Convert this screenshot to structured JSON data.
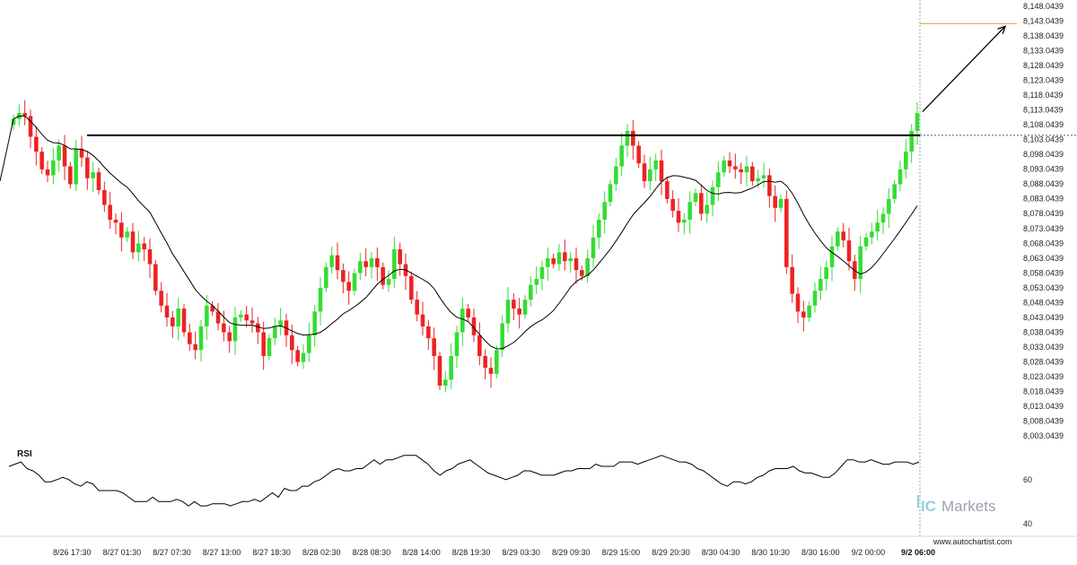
{
  "chart_data": {
    "type": "candlestick",
    "y_axis": {
      "ticks": [
        "8,148.0439",
        "8,143.0439",
        "8,138.0439",
        "8,133.0439",
        "8,128.0439",
        "8,123.0439",
        "8,118.0439",
        "8,113.0439",
        "8,108.0439",
        "8,103.0439",
        "8,098.0439",
        "8,093.0439",
        "8,088.0439",
        "8,083.0439",
        "8,078.0439",
        "8,073.0439",
        "8,068.0439",
        "8,063.0439",
        "8,058.0439",
        "8,053.0439",
        "8,048.0439",
        "8,043.0439",
        "8,038.0439",
        "8,033.0439",
        "8,028.0439",
        "8,023.0439",
        "8,018.0439",
        "8,013.0439",
        "8,008.0439",
        "8,003.0439"
      ],
      "ylim": [
        8003.0439,
        8148.0439
      ]
    },
    "x_axis": {
      "ticks": [
        "8/26 17:30",
        "8/27 01:30",
        "8/27 07:30",
        "8/27 13:00",
        "8/27 18:30",
        "8/28 02:30",
        "8/28 08:30",
        "8/28 14:00",
        "8/28 19:30",
        "8/29 03:30",
        "8/29 09:30",
        "8/29 15:00",
        "8/29 20:30",
        "8/30 04:30",
        "8/30 10:30",
        "8/30 16:00",
        "9/2 00:00"
      ],
      "current_label": "9/2 06:00"
    },
    "resistance_level": 8104.5,
    "target_level": 8142.2,
    "price_series": [
      8110,
      8112,
      8111,
      8104,
      8099,
      8093,
      8091,
      8096,
      8101,
      8094,
      8088,
      8100,
      8097,
      8090,
      8092,
      8086,
      8081,
      8076,
      8075,
      8070,
      8072,
      8065,
      8068,
      8066,
      8061,
      8052,
      8047,
      8043,
      8040,
      8046,
      8038,
      8034,
      8032,
      8040,
      8047,
      8045,
      8041,
      8038,
      8035,
      8043,
      8044,
      8042,
      8041,
      8038,
      8030,
      8036,
      8040,
      8042,
      8037,
      8032,
      8028,
      8031,
      8037,
      8045,
      8053,
      8060,
      8064,
      8059,
      8055,
      8052,
      8058,
      8062,
      8060,
      8063,
      8060,
      8054,
      8056,
      8066,
      8061,
      8057,
      8049,
      8044,
      8040,
      8036,
      8030,
      8020,
      8022,
      8030,
      8038,
      8046,
      8043,
      8037,
      8030,
      8026,
      8024,
      8032,
      8041,
      8049,
      8046,
      8044,
      8049,
      8054,
      8056,
      8060,
      8063,
      8061,
      8065,
      8062,
      8063,
      8059,
      8057,
      8063,
      8070,
      8076,
      8082,
      8088,
      8094,
      8101,
      8106,
      8101,
      8095,
      8089,
      8093,
      8096,
      8089,
      8083,
      8079,
      8075,
      8076,
      8082,
      8085,
      8078,
      8081,
      8087,
      8092,
      8096,
      8094,
      8093,
      8092,
      8094,
      8089,
      8090,
      8091,
      8084,
      8080,
      8083,
      8060,
      8051,
      8045,
      8043,
      8047,
      8052,
      8056,
      8060,
      8067,
      8072,
      8069,
      8062,
      8056,
      8067,
      8070,
      8072,
      8075,
      8078,
      8083,
      8088,
      8093,
      8099,
      8106,
      8112
    ],
    "rsi": {
      "title": "RSI",
      "ticks": [
        "60",
        "40"
      ],
      "ylim": [
        35,
        75
      ],
      "values": [
        66,
        67,
        68,
        65,
        64,
        62,
        59,
        59,
        60,
        61,
        60,
        58,
        57,
        59,
        58,
        55,
        55,
        55,
        55,
        54,
        52,
        50,
        50,
        50,
        52,
        50,
        50,
        50,
        51,
        50,
        48,
        50,
        48,
        48,
        49,
        49,
        49,
        48,
        49,
        50,
        50,
        51,
        50,
        52,
        54,
        52,
        56,
        55,
        55,
        57,
        57,
        59,
        60,
        62,
        64,
        65,
        64,
        64,
        65,
        65,
        67,
        69,
        67,
        69,
        69,
        70,
        71,
        71,
        71,
        69,
        67,
        64,
        62,
        64,
        65,
        67,
        68,
        69,
        67,
        65,
        63,
        62,
        61,
        60,
        61,
        62,
        64,
        64,
        63,
        62,
        62,
        62,
        63,
        64,
        64,
        65,
        65,
        65,
        67,
        66,
        66,
        66,
        68,
        68,
        68,
        67,
        68,
        69,
        70,
        71,
        70,
        69,
        68,
        68,
        67,
        65,
        64,
        62,
        60,
        58,
        57,
        59,
        59,
        58,
        59,
        61,
        62,
        64,
        65,
        65,
        65,
        66,
        64,
        63,
        63,
        62,
        61,
        61,
        63,
        66,
        69,
        69,
        68,
        68,
        69,
        68,
        67,
        67,
        68,
        68,
        68,
        67,
        68
      ]
    }
  },
  "branding": {
    "logo_ic": "IC",
    "logo_text": "Markets",
    "website": "www.autochartist.com"
  },
  "colors": {
    "up": "#33dd33",
    "down": "#ee2222",
    "resistance": "#000000",
    "target": "#e5a35a",
    "ma": "#000000",
    "grid": "#cccccc"
  }
}
